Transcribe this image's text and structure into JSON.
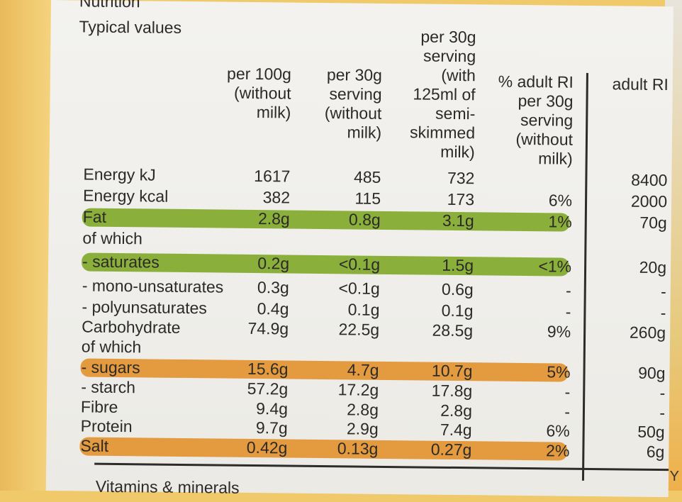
{
  "title_partial": "Nutrition",
  "subtitle": "Typical values",
  "headers": {
    "col1": [
      "per 100g",
      "(without",
      "milk)"
    ],
    "col2": [
      "per 30g",
      "serving",
      "(without",
      "milk)"
    ],
    "col3": [
      "per 30g",
      "serving",
      "(with",
      "125ml of",
      "semi-",
      "skimmed",
      "milk)"
    ],
    "col4": [
      "% adult RI",
      "per 30g",
      "serving",
      "(without",
      "milk)"
    ],
    "col5": [
      "adult RI"
    ]
  },
  "rows": [
    {
      "label": "Energy kJ",
      "c1": "1617",
      "c2": "485",
      "c3": "732",
      "c4": "",
      "c5": "8400",
      "hl": ""
    },
    {
      "label": "Energy kcal",
      "c1": "382",
      "c2": "115",
      "c3": "173",
      "c4": "6%",
      "c5": "2000",
      "hl": ""
    },
    {
      "label": "Fat",
      "c1": "2.8g",
      "c2": "0.8g",
      "c3": "3.1g",
      "c4": "1%",
      "c5": "70g",
      "hl": "green"
    },
    {
      "label": "of which",
      "c1": "",
      "c2": "",
      "c3": "",
      "c4": "",
      "c5": "",
      "hl": ""
    },
    {
      "label": "- saturates",
      "c1": "0.2g",
      "c2": "<0.1g",
      "c3": "1.5g",
      "c4": "<1%",
      "c5": "20g",
      "hl": "green"
    },
    {
      "label": "- mono-unsaturates",
      "c1": "0.3g",
      "c2": "<0.1g",
      "c3": "0.6g",
      "c4": "-",
      "c5": "-",
      "hl": ""
    },
    {
      "label": "- polyunsaturates",
      "c1": "0.4g",
      "c2": "0.1g",
      "c3": "0.1g",
      "c4": "-",
      "c5": "-",
      "hl": ""
    },
    {
      "label": "Carbohydrate",
      "c1": "74.9g",
      "c2": "22.5g",
      "c3": "28.5g",
      "c4": "9%",
      "c5": "260g",
      "hl": ""
    },
    {
      "label": "of which",
      "c1": "",
      "c2": "",
      "c3": "",
      "c4": "",
      "c5": "",
      "hl": ""
    },
    {
      "label": "- sugars",
      "c1": "15.6g",
      "c2": "4.7g",
      "c3": "10.7g",
      "c4": "5%",
      "c5": "90g",
      "hl": "orange"
    },
    {
      "label": "- starch",
      "c1": "57.2g",
      "c2": "17.2g",
      "c3": "17.8g",
      "c4": "-",
      "c5": "-",
      "hl": ""
    },
    {
      "label": "Fibre",
      "c1": "9.4g",
      "c2": "2.8g",
      "c3": "2.8g",
      "c4": "-",
      "c5": "-",
      "hl": ""
    },
    {
      "label": "Protein",
      "c1": "9.7g",
      "c2": "2.9g",
      "c3": "7.4g",
      "c4": "6%",
      "c5": "50g",
      "hl": ""
    },
    {
      "label": "Salt",
      "c1": "0.42g",
      "c2": "0.13g",
      "c3": "0.27g",
      "c4": "2%",
      "c5": "6g",
      "hl": "orange"
    }
  ],
  "footer_partial": "Vitamins & minerals",
  "edge_text": "Y",
  "colors": {
    "green": "#8ab03b",
    "orange": "#e49a3e",
    "text": "#2c2a28"
  }
}
